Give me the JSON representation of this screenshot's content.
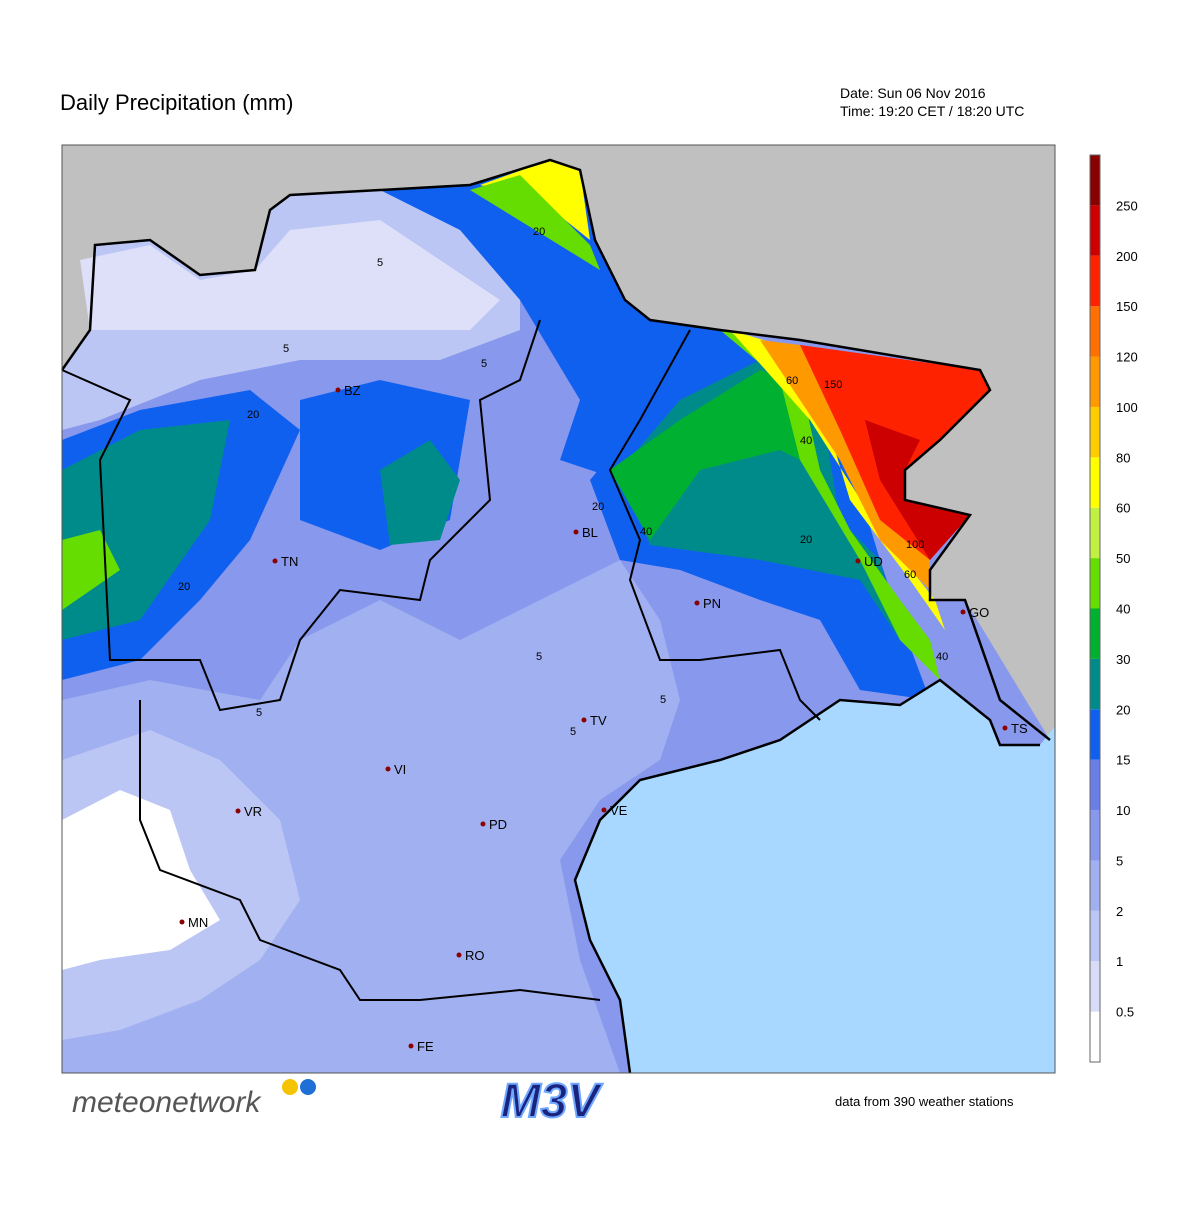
{
  "header": {
    "title": "Daily Precipitation (mm)",
    "date": "Date: Sun 06 Nov 2016",
    "time": "Time: 19:20 CET / 18:20 UTC"
  },
  "cities": [
    "BZ",
    "TN",
    "BL",
    "UD",
    "PN",
    "GO",
    "TS",
    "TV",
    "VI",
    "VR",
    "VE",
    "PD",
    "MN",
    "RO",
    "FE"
  ],
  "contour_labels": [
    "5",
    "5",
    "20",
    "5",
    "20",
    "20",
    "40",
    "60",
    "150",
    "40",
    "100",
    "60",
    "20",
    "40",
    "5",
    "5",
    "5",
    "5",
    "20"
  ],
  "legend": {
    "ticks": [
      0.5,
      1,
      2,
      5,
      10,
      15,
      20,
      30,
      40,
      50,
      60,
      80,
      100,
      120,
      150,
      200,
      250
    ],
    "colors": [
      "#ffffff",
      "#d8dcf8",
      "#bcc6f4",
      "#a0b0f0",
      "#8898ec",
      "#6b7ee8",
      "#1060f0",
      "#008b8b",
      "#00b030",
      "#66dd00",
      "#c0f040",
      "#ffff00",
      "#ffcc00",
      "#ff9900",
      "#ff7000",
      "#ff2200",
      "#cc0000",
      "#880000"
    ]
  },
  "footer": {
    "brand": "meteonetwork",
    "logo": "M3V",
    "stations": "data from 390 weather stations"
  }
}
